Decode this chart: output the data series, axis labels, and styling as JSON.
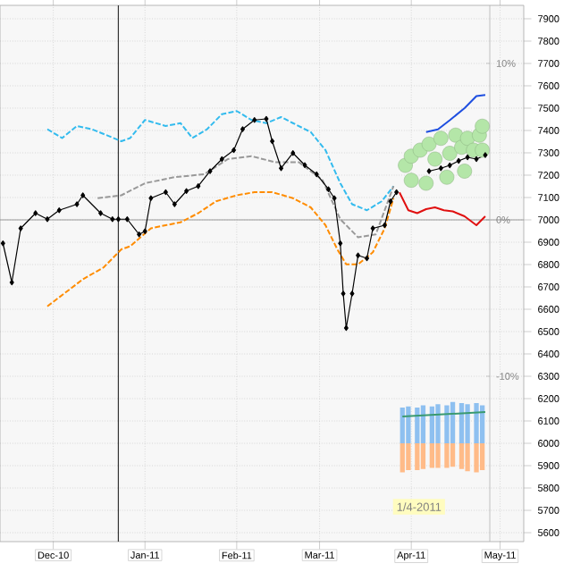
{
  "chart_data": {
    "type": "line",
    "xlim": [
      "2010-11-13",
      "2011-05-09"
    ],
    "xticks": [
      {
        "value": "2010-12-01",
        "label": "Dec-10"
      },
      {
        "value": "2011-01-01",
        "label": "Jan-11"
      },
      {
        "value": "2011-02-01",
        "label": "Feb-11"
      },
      {
        "value": "2011-03-01",
        "label": "Mar-11"
      },
      {
        "value": "2011-04-01",
        "label": "Apr-11"
      },
      {
        "value": "2011-05-01",
        "label": "May-11"
      }
    ],
    "ylim": [
      5560,
      7960
    ],
    "yticks": [
      5600,
      5700,
      5800,
      5900,
      6000,
      6100,
      6200,
      6300,
      6400,
      6500,
      6600,
      6700,
      6800,
      6900,
      7000,
      7100,
      7200,
      7300,
      7400,
      7500,
      7600,
      7700,
      7800,
      7900
    ],
    "y2lim": [
      -20.57,
      13.71
    ],
    "y2ticks": [
      {
        "value": 10,
        "label": "10%"
      },
      {
        "value": 0,
        "label": "0%"
      },
      {
        "value": -10,
        "label": "-10%"
      }
    ],
    "grid": true,
    "ref_lines": [
      {
        "axis": "x",
        "value": "2010-12-23",
        "color": "#333333"
      },
      {
        "axis": "y",
        "value": 7000,
        "color": "#999999"
      }
    ],
    "annotations": [
      "1/4-2011"
    ],
    "series": [
      {
        "color": "#33bbee",
        "line_style": "dashed",
        "x": [
          "2010-11-29",
          "2010-12-04",
          "2010-12-09",
          "2010-12-14",
          "2010-12-19",
          "2010-12-24",
          "2010-12-27",
          "2011-01-01",
          "2011-01-08",
          "2011-01-13",
          "2011-01-17",
          "2011-01-22",
          "2011-01-27",
          "2011-02-01",
          "2011-02-06",
          "2011-02-11",
          "2011-02-16",
          "2011-02-20",
          "2011-02-26",
          "2011-03-03",
          "2011-03-08",
          "2011-03-12",
          "2011-03-17",
          "2011-03-22",
          "2011-03-26"
        ],
        "values": [
          7406,
          7366,
          7420,
          7406,
          7379,
          7352,
          7366,
          7447,
          7420,
          7433,
          7366,
          7406,
          7473,
          7487,
          7447,
          7433,
          7460,
          7433,
          7393,
          7312,
          7164,
          7070,
          7043,
          7083,
          7151
        ]
      },
      {
        "color": "#ff8c00",
        "line_style": "dashed",
        "x": [
          "2010-11-29",
          "2010-12-11",
          "2010-12-18",
          "2010-12-24",
          "2010-12-27",
          "2011-01-03",
          "2011-01-08",
          "2011-01-13",
          "2011-01-19",
          "2011-01-25",
          "2011-02-01",
          "2011-02-07",
          "2011-02-13",
          "2011-02-20",
          "2011-02-26",
          "2011-03-03",
          "2011-03-07",
          "2011-03-10",
          "2011-03-14",
          "2011-03-19",
          "2011-03-23",
          "2011-03-26"
        ],
        "values": [
          6613,
          6734,
          6787,
          6868,
          6882,
          6962,
          6976,
          6989,
          7030,
          7083,
          7110,
          7124,
          7124,
          7097,
          7056,
          6976,
          6868,
          6801,
          6801,
          6855,
          6962,
          7097
        ]
      },
      {
        "color": "#999999",
        "line_style": "dashed",
        "x": [
          "2010-12-16",
          "2010-12-24",
          "2011-01-01",
          "2011-01-11",
          "2011-01-21",
          "2011-01-29",
          "2011-02-06",
          "2011-02-14",
          "2011-02-22",
          "2011-03-02",
          "2011-03-08",
          "2011-03-14",
          "2011-03-20",
          "2011-03-26"
        ],
        "values": [
          7097,
          7110,
          7164,
          7191,
          7204,
          7272,
          7285,
          7258,
          7258,
          7178,
          7003,
          6922,
          6935,
          7151
        ]
      },
      {
        "color": "#000000",
        "marker": "diamond",
        "x": [
          "2010-11-14",
          "2010-11-17",
          "2010-11-20",
          "2010-11-25",
          "2010-11-29",
          "2010-12-03",
          "2010-12-09",
          "2010-12-11",
          "2010-12-17",
          "2010-12-21",
          "2010-12-23",
          "2010-12-26",
          "2010-12-30",
          "2011-01-01",
          "2011-01-03",
          "2011-01-08",
          "2011-01-11",
          "2011-01-15",
          "2011-01-19",
          "2011-01-23",
          "2011-01-27",
          "2011-01-31",
          "2011-02-03",
          "2011-02-07",
          "2011-02-11",
          "2011-02-13",
          "2011-02-16",
          "2011-02-20",
          "2011-02-24",
          "2011-02-28",
          "2011-03-04",
          "2011-03-06",
          "2011-03-08",
          "2011-03-09",
          "2011-03-10",
          "2011-03-12",
          "2011-03-14",
          "2011-03-17",
          "2011-03-19",
          "2011-03-23",
          "2011-03-25",
          "2011-03-27"
        ],
        "values": [
          6895,
          6720,
          6962,
          7030,
          7003,
          7043,
          7070,
          7110,
          7030,
          7003,
          7003,
          7003,
          6935,
          6949,
          7097,
          7124,
          7070,
          7129,
          7151,
          7218,
          7272,
          7312,
          7406,
          7447,
          7452,
          7352,
          7231,
          7299,
          7245,
          7204,
          7137,
          7097,
          6895,
          6670,
          6516,
          6670,
          6841,
          6828,
          6962,
          6976,
          7083,
          7124
        ]
      },
      {
        "type": "scatter",
        "color": "#b4e6a8",
        "marker": "circle",
        "x": [
          "2011-03-30",
          "2011-04-01",
          "2011-04-04",
          "2011-04-07",
          "2011-04-09",
          "2011-04-11",
          "2011-04-14",
          "2011-04-16",
          "2011-04-18",
          "2011-04-20",
          "2011-04-22",
          "2011-04-24",
          "2011-04-25",
          "2011-04-01",
          "2011-04-06",
          "2011-04-13",
          "2011-04-19",
          "2011-04-25"
        ],
        "values": [
          7244,
          7285,
          7312,
          7339,
          7272,
          7365,
          7298,
          7379,
          7325,
          7365,
          7312,
          7379,
          7312,
          7177,
          7164,
          7191,
          7218,
          7419
        ]
      },
      {
        "color": "#1f4fe0",
        "x": [
          "2011-04-06",
          "2011-04-10",
          "2011-04-14",
          "2011-04-19",
          "2011-04-23",
          "2011-04-26"
        ],
        "values": [
          7393,
          7405,
          7446,
          7500,
          7554,
          7559
        ]
      },
      {
        "color": "#e01010",
        "x": [
          "2011-03-28",
          "2011-03-31",
          "2011-04-03",
          "2011-04-06",
          "2011-04-09",
          "2011-04-12",
          "2011-04-15",
          "2011-04-19",
          "2011-04-23",
          "2011-04-26"
        ],
        "values": [
          7123,
          7043,
          7030,
          7048,
          7056,
          7043,
          7038,
          7016,
          6976,
          7016
        ]
      },
      {
        "color": "#000000",
        "marker": "diamond",
        "x": [
          "2011-04-07",
          "2011-04-11",
          "2011-04-14",
          "2011-04-17",
          "2011-04-20",
          "2011-04-23",
          "2011-04-26"
        ],
        "values": [
          7218,
          7231,
          7244,
          7264,
          7280,
          7272,
          7290
        ]
      },
      {
        "type": "bar",
        "color": "#8ec0f0",
        "x": [
          "2011-03-29",
          "2011-03-31",
          "2011-04-03",
          "2011-04-05",
          "2011-04-08",
          "2011-04-10",
          "2011-04-13",
          "2011-04-15",
          "2011-04-18",
          "2011-04-20",
          "2011-04-23",
          "2011-04-25"
        ],
        "base": [
          6000,
          6000,
          6000,
          6000,
          6000,
          6000,
          6000,
          6000,
          6000,
          6000,
          6000,
          6000
        ],
        "values": [
          160,
          165,
          160,
          170,
          165,
          175,
          170,
          185,
          180,
          175,
          180,
          170
        ]
      },
      {
        "type": "bar",
        "color": "#ffbb88",
        "x": [
          "2011-03-29",
          "2011-03-31",
          "2011-04-03",
          "2011-04-05",
          "2011-04-08",
          "2011-04-10",
          "2011-04-13",
          "2011-04-15",
          "2011-04-18",
          "2011-04-20",
          "2011-04-23",
          "2011-04-25"
        ],
        "base": [
          6000,
          6000,
          6000,
          6000,
          6000,
          6000,
          6000,
          6000,
          6000,
          6000,
          6000,
          6000
        ],
        "values": [
          -130,
          -120,
          -120,
          -115,
          -110,
          -110,
          -110,
          -105,
          -115,
          -125,
          -130,
          -120
        ]
      },
      {
        "color": "#3a9a70",
        "x": [
          "2011-03-29",
          "2011-04-12",
          "2011-04-26"
        ],
        "values": [
          6120,
          6130,
          6140
        ]
      }
    ]
  }
}
